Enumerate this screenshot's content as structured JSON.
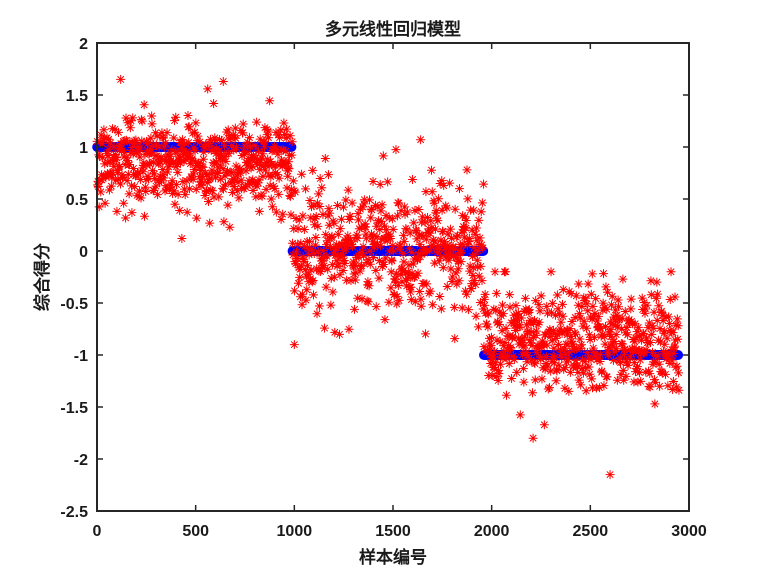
{
  "chart_data": {
    "type": "scatter",
    "title": "多元线性回归模型",
    "xlabel": "样本编号",
    "ylabel": "综合得分",
    "xlim": [
      0,
      3000
    ],
    "ylim": [
      -2.5,
      2
    ],
    "xticks": [
      0,
      500,
      1000,
      1500,
      2000,
      2500,
      3000
    ],
    "yticks": [
      2,
      1.5,
      1,
      0.5,
      0,
      -0.5,
      -1,
      -1.5,
      -2,
      -2.5
    ],
    "grid": false,
    "legend": "none",
    "colors": {
      "predicted": "#ff0000",
      "actual": "#0000ff"
    },
    "series": [
      {
        "role": "actual",
        "marker": "filled-circle",
        "segments": [
          {
            "x_start": 1,
            "x_end": 990,
            "y": 1
          },
          {
            "x_start": 991,
            "x_end": 1960,
            "y": 0
          },
          {
            "x_start": 1961,
            "x_end": 2950,
            "y": -1
          }
        ]
      },
      {
        "role": "predicted",
        "marker": "asterisk",
        "segments": [
          {
            "x_start": 1,
            "x_end": 990,
            "center": 0.85,
            "spread": 0.22,
            "min": 0.1,
            "max": 1.65
          },
          {
            "x_start": 991,
            "x_end": 1960,
            "center": 0.05,
            "spread": 0.33,
            "min": -0.9,
            "max": 1.07
          },
          {
            "x_start": 1961,
            "x_end": 2950,
            "center": -0.85,
            "spread": 0.25,
            "min": -2.15,
            "max": -0.2
          }
        ],
        "notable_points": [
          {
            "x": 120,
            "y": 1.65
          },
          {
            "x": 640,
            "y": 1.63
          },
          {
            "x": 430,
            "y": 0.12
          },
          {
            "x": 1000,
            "y": -0.9
          },
          {
            "x": 1640,
            "y": 1.07
          },
          {
            "x": 2510,
            "y": -0.22
          },
          {
            "x": 2600,
            "y": -2.15
          },
          {
            "x": 2210,
            "y": -1.8
          }
        ]
      }
    ]
  }
}
